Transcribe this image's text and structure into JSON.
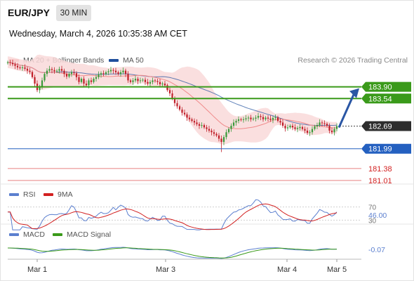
{
  "header": {
    "pair": "EUR/JPY",
    "timeframe": "30 MIN",
    "datetime": "Wednesday, March 4, 2026 10:35:38 AM CET",
    "credit": "Research © 2026 Trading Central"
  },
  "legends": {
    "ma20": "MA 20 + Bollinger Bands",
    "ma50": "MA 50",
    "rsi": "RSI",
    "rsi_ma": "9MA",
    "macd": "MACD",
    "macd_signal": "MACD Signal"
  },
  "colors": {
    "ma20": "#f08a8a",
    "ma50": "#1e4f9c",
    "bollinger_fill": "#f9d9d9",
    "candle_up": "#3a9a3a",
    "candle_down": "#c0202a",
    "resistance": "#3a9a1a",
    "support": "#2460c0",
    "weak_support": "#e88080",
    "arrow": "#2a56a4"
  },
  "chart_data": [
    {
      "type": "candlestick",
      "x": [
        "Mar 1",
        "Mar 3",
        "Mar 4",
        "Mar 5"
      ],
      "price_levels": [
        {
          "label": "183.90",
          "value": 183.9,
          "kind": "resistance"
        },
        {
          "label": "183.54",
          "value": 183.54,
          "kind": "resistance"
        },
        {
          "label": "182.69",
          "value": 182.69,
          "kind": "last-price"
        },
        {
          "label": "181.99",
          "value": 181.99,
          "kind": "support"
        },
        {
          "label": "181.38",
          "value": 181.38,
          "kind": "support"
        },
        {
          "label": "181.01",
          "value": 181.01,
          "kind": "support"
        }
      ],
      "ylim": [
        180.9,
        184.5
      ],
      "closes": [
        184.66,
        184.64,
        184.6,
        184.55,
        184.5,
        184.48,
        184.5,
        184.46,
        184.4,
        184.36,
        184.2,
        184.0,
        183.8,
        183.9,
        184.1,
        184.3,
        184.4,
        184.45,
        184.42,
        184.38,
        184.4,
        184.45,
        184.4,
        184.3,
        184.22,
        184.3,
        184.35,
        184.32,
        184.2,
        184.05,
        184.15,
        184.0,
        183.95,
        184.1,
        184.05,
        184.15,
        184.2,
        184.28,
        184.32,
        184.3,
        184.35,
        184.38,
        184.42,
        184.4,
        184.35,
        184.3,
        184.35,
        184.4,
        184.3,
        184.1,
        184.05,
        184.1,
        184.15,
        184.08,
        184.1,
        184.12,
        184.05,
        184.0,
        184.05,
        184.1,
        184.08,
        184.05,
        183.98,
        184.0,
        183.95,
        183.8,
        183.7,
        183.55,
        183.4,
        183.3,
        183.2,
        183.1,
        183.05,
        182.95,
        182.9,
        182.85,
        182.8,
        182.75,
        182.7,
        182.72,
        182.65,
        182.6,
        182.55,
        182.5,
        182.45,
        182.4,
        182.3,
        182.2,
        182.35,
        182.5,
        182.6,
        182.7,
        182.8,
        182.85,
        182.9,
        182.88,
        182.9,
        182.93,
        182.95,
        182.9,
        182.92,
        182.95,
        183.0,
        182.97,
        182.9,
        182.95,
        182.92,
        182.88,
        182.94,
        182.96,
        182.85,
        182.8,
        182.7,
        182.62,
        182.65,
        182.7,
        182.65,
        182.6,
        182.63,
        182.66,
        182.6,
        182.55,
        182.48,
        182.5,
        182.6,
        182.68,
        182.72,
        182.8,
        182.78,
        182.76,
        182.7,
        182.55,
        182.5,
        182.6,
        182.69
      ],
      "ma20_label": "MA 20 + Bollinger Bands",
      "ma50_label": "MA 50"
    },
    {
      "type": "line",
      "name": "RSI",
      "levels": [
        {
          "label": "70",
          "value": 70
        },
        {
          "label": "30",
          "value": 30
        }
      ],
      "value_label": "46.00",
      "ylim": [
        20,
        80
      ]
    },
    {
      "type": "line",
      "name": "MACD",
      "value_label": "-0.07"
    }
  ]
}
